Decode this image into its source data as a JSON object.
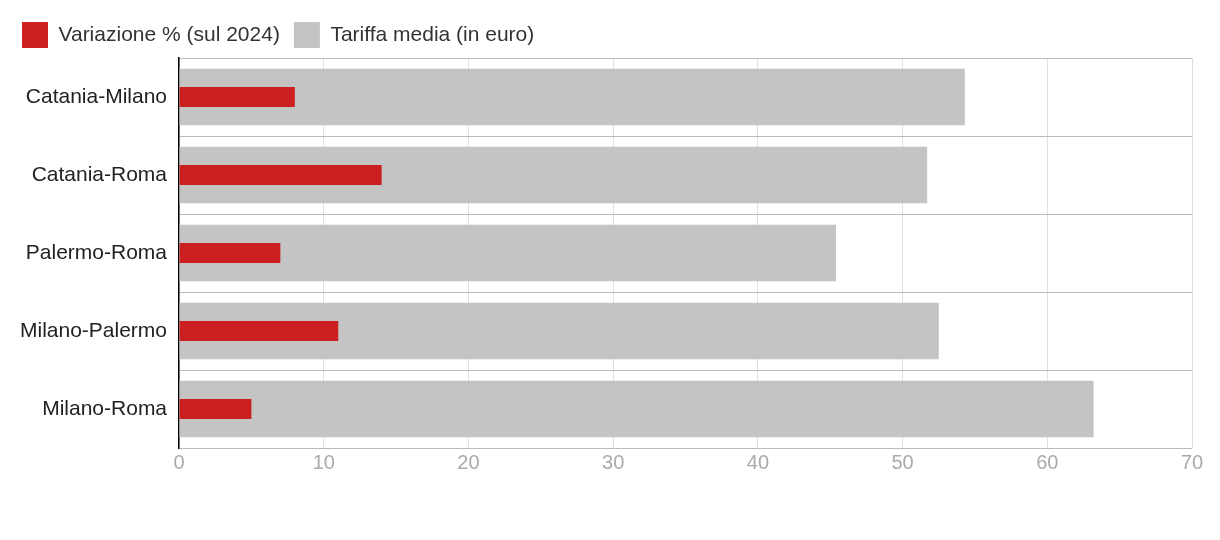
{
  "chart_data": {
    "type": "bar",
    "orientation": "horizontal",
    "categories": [
      "Catania-Milano",
      "Catania-Roma",
      "Palermo-Roma",
      "Milano-Palermo",
      "Milano-Roma"
    ],
    "series": [
      {
        "name": "Tariffa media (in euro)",
        "color": "#c4c4c4",
        "values": [
          54.3,
          51.7,
          45.4,
          52.5,
          63.2
        ]
      },
      {
        "name": "Variazione % (sul 2024)",
        "color": "#cc1f1f",
        "values": [
          8,
          14,
          7,
          11,
          5
        ]
      }
    ],
    "xlim": [
      0,
      70
    ],
    "xticks": [
      0,
      10,
      20,
      30,
      40,
      50,
      60,
      70
    ],
    "grid": true,
    "legend": "top left"
  }
}
